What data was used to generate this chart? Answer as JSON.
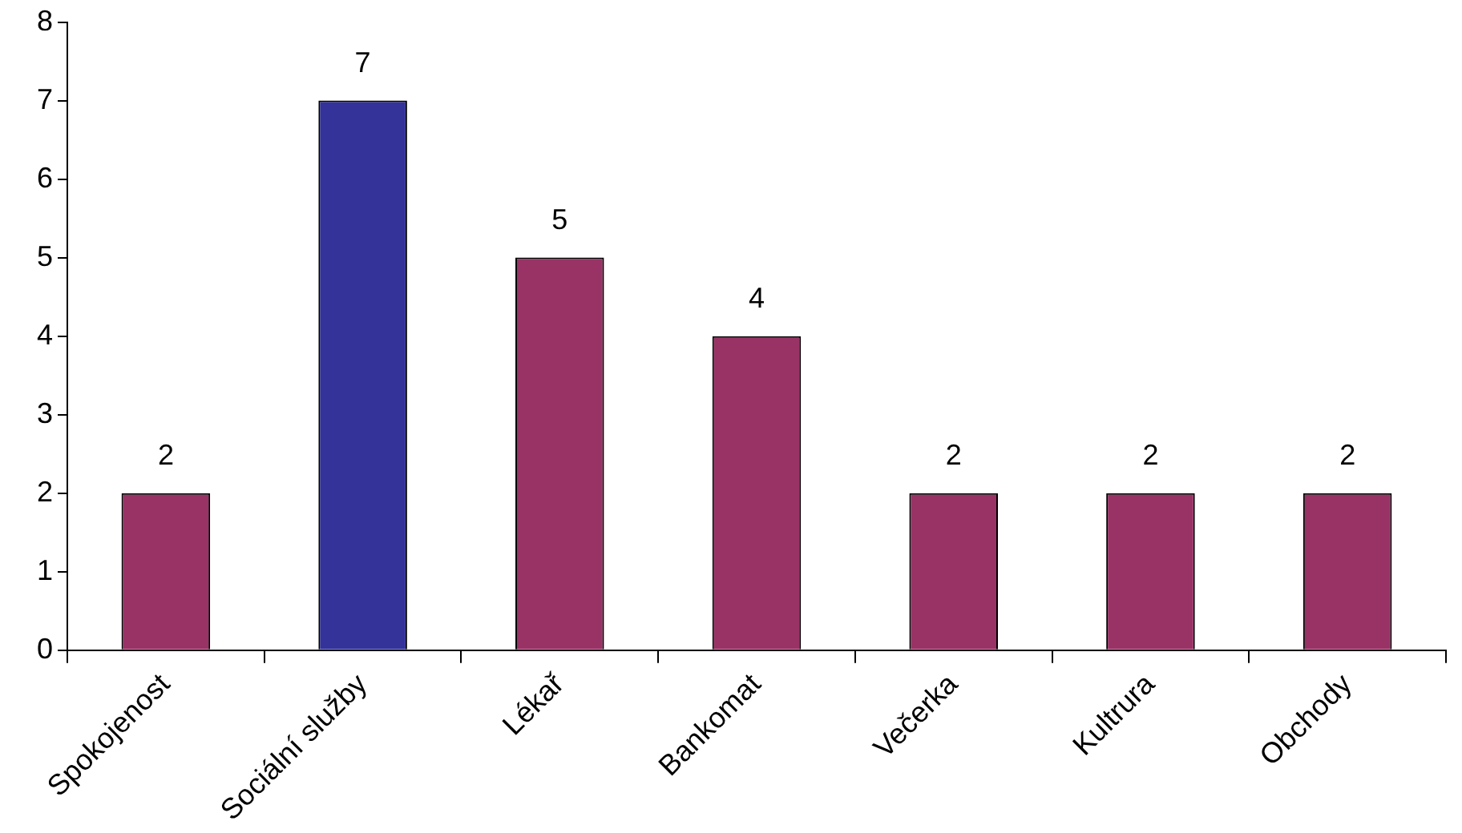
{
  "chart_data": {
    "type": "bar",
    "categories": [
      "Spokojenost",
      "Sociální služby",
      "Lékař",
      "Bankomat",
      "Večerka",
      "Kultrura",
      "Obchody"
    ],
    "values": [
      2,
      7,
      5,
      4,
      2,
      2,
      2
    ],
    "colors": [
      "#993366",
      "#333399",
      "#993366",
      "#993366",
      "#993366",
      "#993366",
      "#993366"
    ],
    "ylim": [
      0,
      8
    ],
    "yticks": [
      0,
      1,
      2,
      3,
      4,
      5,
      6,
      7,
      8
    ],
    "grid": false,
    "legend": false,
    "data_labels": true
  }
}
